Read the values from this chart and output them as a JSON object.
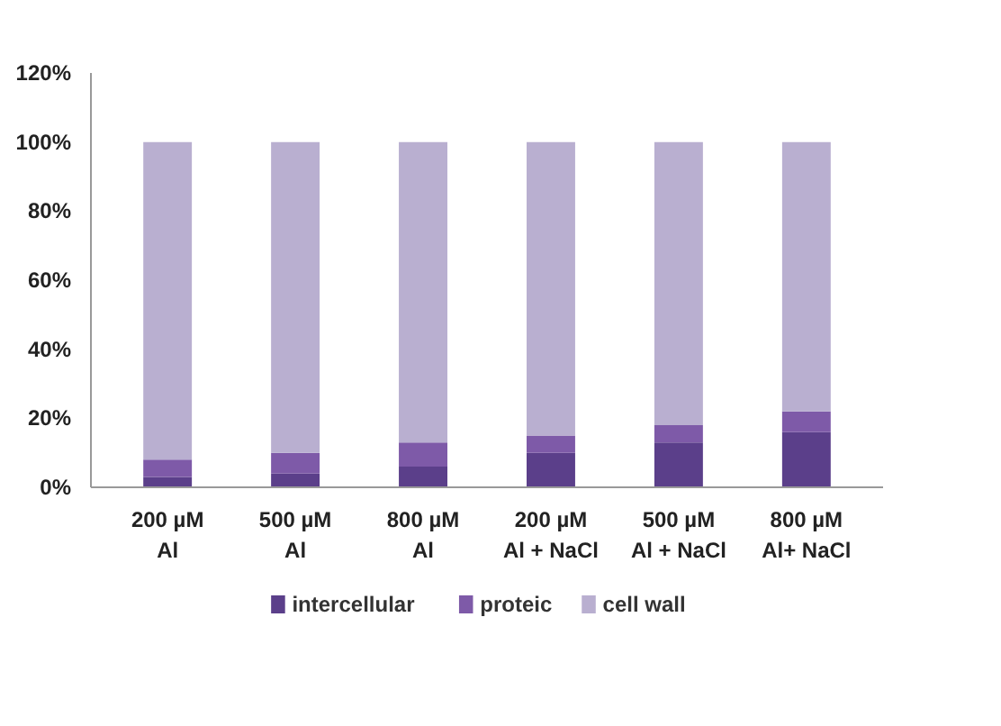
{
  "chart_data": {
    "type": "bar",
    "stacked": true,
    "categories": [
      "200 µM\nAl",
      "500 µM\nAl",
      "800 µM\nAl",
      "200 µM\nAl + NaCl",
      "500 µM\nAl + NaCl",
      "800 µM\nAl+ NaCl"
    ],
    "series": [
      {
        "name": "intercellular",
        "color": "#5b3f8a",
        "values": [
          3,
          4,
          6,
          10,
          13,
          16
        ]
      },
      {
        "name": "proteic",
        "color": "#7e5aa8",
        "values": [
          5,
          6,
          7,
          5,
          5,
          6
        ]
      },
      {
        "name": "cell wall",
        "color": "#b9afd0",
        "values": [
          92,
          90,
          87,
          85,
          82,
          78
        ]
      }
    ],
    "ylim": [
      0,
      120
    ],
    "yticks": [
      {
        "value": 0,
        "label": "0%"
      },
      {
        "value": 20,
        "label": "20%"
      },
      {
        "value": 40,
        "label": "40%"
      },
      {
        "value": 60,
        "label": "60%"
      },
      {
        "value": 80,
        "label": "80%"
      },
      {
        "value": 100,
        "label": "100%"
      },
      {
        "value": 120,
        "label": "120%"
      }
    ],
    "grid": false,
    "legend": "bottom"
  }
}
